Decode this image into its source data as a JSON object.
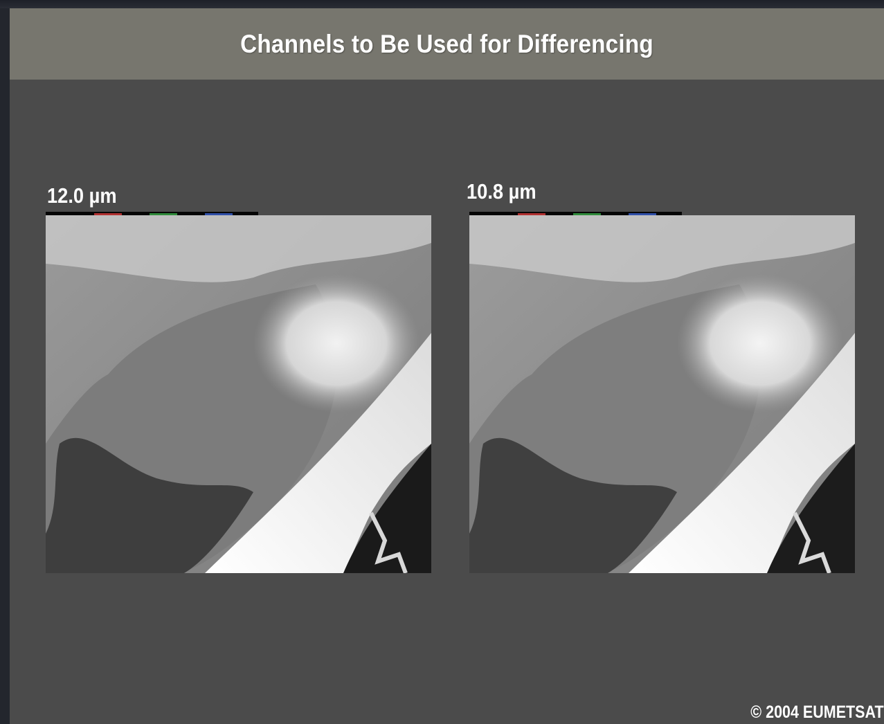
{
  "slide": {
    "title": "Channels to Be Used for Differencing",
    "panels": [
      {
        "label": "12.0 µm"
      },
      {
        "label": "10.8 µm"
      }
    ],
    "copyright": "© 2004 EUMETSAT"
  },
  "colors": {
    "background": "#4b4b4b",
    "title_bar": "#77766e",
    "text": "#ffffff"
  }
}
